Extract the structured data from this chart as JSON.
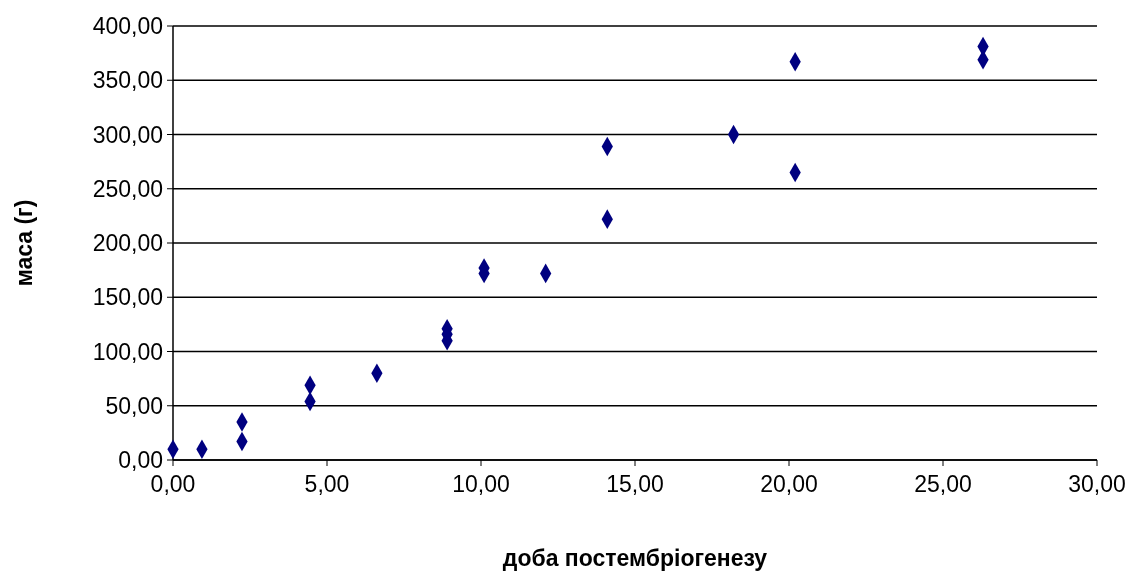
{
  "chart_data": {
    "type": "scatter",
    "xlabel": "доба постембріогенезу",
    "ylabel": "маса (г)",
    "x": [
      0,
      0.94,
      2.24,
      2.24,
      4.45,
      4.45,
      6.62,
      8.9,
      8.9,
      8.9,
      10.1,
      10.1,
      12.1,
      14.1,
      14.1,
      18.2,
      20.2,
      20.2,
      26.3,
      26.3
    ],
    "series": [
      {
        "color": "#000080",
        "values": [
          10,
          10,
          35,
          17,
          69,
          54,
          80,
          121,
          116,
          110,
          177,
          172,
          172,
          289,
          222,
          300,
          367,
          265,
          381,
          369
        ]
      }
    ],
    "xlim": [
      0,
      30
    ],
    "ylim": [
      0,
      400
    ],
    "xticks": [
      {
        "value": 0,
        "label": "0,00"
      },
      {
        "value": 5,
        "label": "5,00"
      },
      {
        "value": 10,
        "label": "10,00"
      },
      {
        "value": 15,
        "label": "15,00"
      },
      {
        "value": 20,
        "label": "20,00"
      },
      {
        "value": 25,
        "label": "25,00"
      },
      {
        "value": 30,
        "label": "30,00"
      }
    ],
    "yticks": [
      {
        "value": 0,
        "label": "0,00"
      },
      {
        "value": 50,
        "label": "50,00"
      },
      {
        "value": 100,
        "label": "100,00"
      },
      {
        "value": 150,
        "label": "150,00"
      },
      {
        "value": 200,
        "label": "200,00"
      },
      {
        "value": 250,
        "label": "250,00"
      },
      {
        "value": 300,
        "label": "300,00"
      },
      {
        "value": 350,
        "label": "350,00"
      },
      {
        "value": 400,
        "label": "400,00"
      }
    ],
    "grid": "y",
    "marker": "diamond"
  }
}
